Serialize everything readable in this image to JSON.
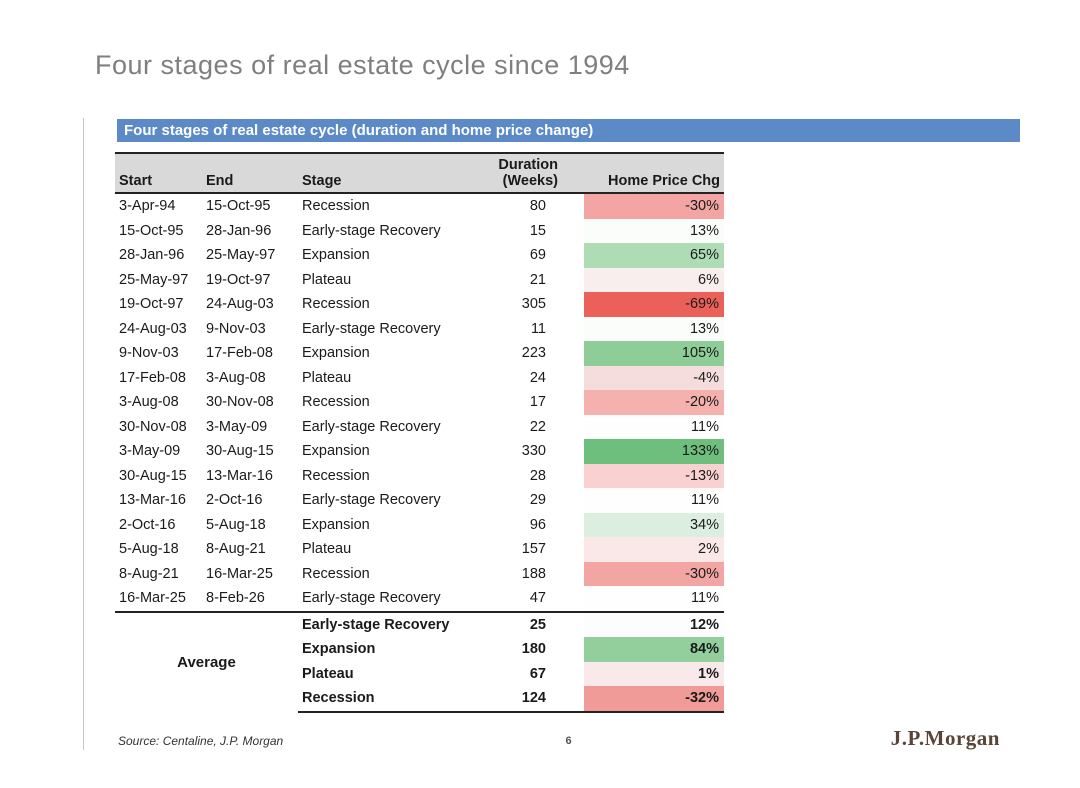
{
  "slide": {
    "title": "Four stages of real estate cycle since 1994",
    "banner_title": "Four stages of real estate cycle (duration and home price change)",
    "source": "Source: Centaline, J.P. Morgan",
    "page_number": "6",
    "logo_text": "J.P.Morgan"
  },
  "colors": {
    "banner_bg": "#5b8ac6",
    "banner_text": "#ffffff",
    "table_header_bg": "#d9d9d9",
    "title_text": "#7f7f7f",
    "logo_text": "#5a4437",
    "max_negative_red": "#ec605a",
    "max_positive_green": "#6ebe7d"
  },
  "table": {
    "headers": {
      "start": "Start",
      "end": "End",
      "stage": "Stage",
      "duration_line1": "Duration",
      "duration_line2": "(Weeks)",
      "price": "Home Price Chg"
    },
    "rows": [
      {
        "start": "3-Apr-94",
        "end": "15-Oct-95",
        "stage": "Recession",
        "duration": "80",
        "price": "-30%",
        "price_bg": "#f2a5a2"
      },
      {
        "start": "15-Oct-95",
        "end": "28-Jan-96",
        "stage": "Early-stage Recovery",
        "duration": "15",
        "price": "13%",
        "price_bg": "#fbfdfb"
      },
      {
        "start": "28-Jan-96",
        "end": "25-May-97",
        "stage": "Expansion",
        "duration": "69",
        "price": "65%",
        "price_bg": "#aedcb4"
      },
      {
        "start": "25-May-97",
        "end": "19-Oct-97",
        "stage": "Plateau",
        "duration": "21",
        "price": "6%",
        "price_bg": "#f9eeee"
      },
      {
        "start": "19-Oct-97",
        "end": "24-Aug-03",
        "stage": "Recession",
        "duration": "305",
        "price": "-69%",
        "price_bg": "#ec605a"
      },
      {
        "start": "24-Aug-03",
        "end": "9-Nov-03",
        "stage": "Early-stage Recovery",
        "duration": "11",
        "price": "13%",
        "price_bg": "#fbfdfb"
      },
      {
        "start": "9-Nov-03",
        "end": "17-Feb-08",
        "stage": "Expansion",
        "duration": "223",
        "price": "105%",
        "price_bg": "#8fcd98"
      },
      {
        "start": "17-Feb-08",
        "end": "3-Aug-08",
        "stage": "Plateau",
        "duration": "24",
        "price": "-4%",
        "price_bg": "#f6dddd"
      },
      {
        "start": "3-Aug-08",
        "end": "30-Nov-08",
        "stage": "Recession",
        "duration": "17",
        "price": "-20%",
        "price_bg": "#f4b1ad"
      },
      {
        "start": "30-Nov-08",
        "end": "3-May-09",
        "stage": "Early-stage Recovery",
        "duration": "22",
        "price": "11%",
        "price_bg": "#fdfefd"
      },
      {
        "start": "3-May-09",
        "end": "30-Aug-15",
        "stage": "Expansion",
        "duration": "330",
        "price": "133%",
        "price_bg": "#6ebe7d"
      },
      {
        "start": "30-Aug-15",
        "end": "13-Mar-16",
        "stage": "Recession",
        "duration": "28",
        "price": "-13%",
        "price_bg": "#f8d1d0"
      },
      {
        "start": "13-Mar-16",
        "end": "2-Oct-16",
        "stage": "Early-stage Recovery",
        "duration": "29",
        "price": "11%",
        "price_bg": "#fdfefd"
      },
      {
        "start": "2-Oct-16",
        "end": "5-Aug-18",
        "stage": "Expansion",
        "duration": "96",
        "price": "34%",
        "price_bg": "#dceee0"
      },
      {
        "start": "5-Aug-18",
        "end": "8-Aug-21",
        "stage": "Plateau",
        "duration": "157",
        "price": "2%",
        "price_bg": "#fae7e8"
      },
      {
        "start": "8-Aug-21",
        "end": "16-Mar-25",
        "stage": "Recession",
        "duration": "188",
        "price": "-30%",
        "price_bg": "#f2a5a2"
      },
      {
        "start": "16-Mar-25",
        "end": "8-Feb-26",
        "stage": "Early-stage Recovery",
        "duration": "47",
        "price": "11%",
        "price_bg": "#fdfefd"
      }
    ],
    "average": {
      "label": "Average",
      "rows": [
        {
          "stage": "Early-stage Recovery",
          "duration": "25",
          "price": "12%",
          "price_bg": "#fcfdfc"
        },
        {
          "stage": "Expansion",
          "duration": "180",
          "price": "84%",
          "price_bg": "#93cf9d"
        },
        {
          "stage": "Plateau",
          "duration": "67",
          "price": "1%",
          "price_bg": "#f9e9eb"
        },
        {
          "stage": "Recession",
          "duration": "124",
          "price": "-32%",
          "price_bg": "#f19b98"
        }
      ]
    }
  }
}
